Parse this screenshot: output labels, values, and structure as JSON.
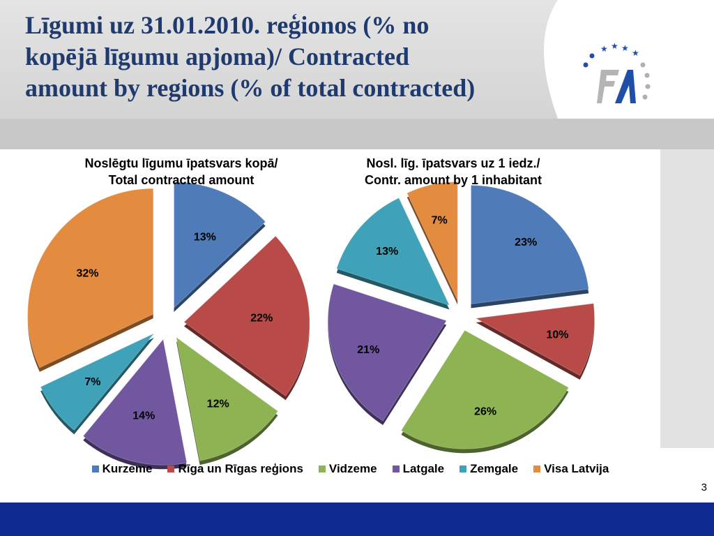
{
  "slide": {
    "title": "Līgumi uz 31.01.2010. reģionos (% no\nkopējā līgumu apjoma)/ Contracted\namount by regions (% of total contracted)",
    "page_number": "3"
  },
  "colors": {
    "title": "#1f3a6e",
    "footer": "#0d2a8f",
    "logo_blue": "#1f4fa8"
  },
  "logo": {
    "icon": "fm-logo-with-stars"
  },
  "chart_data": [
    {
      "type": "pie",
      "title": "Noslēgtu līgumu īpatsvars kopā/\nTotal contracted amount",
      "categories": [
        "Kurzeme",
        "Rīga un Rīgas reģions",
        "Vidzeme",
        "Latgale",
        "Zemgale",
        "Visa Latvija"
      ],
      "values": [
        13,
        22,
        12,
        14,
        7,
        32
      ],
      "labels": [
        "13%",
        "22%",
        "12%",
        "14%",
        "7%",
        "32%"
      ],
      "colors": [
        "#4f7bb8",
        "#b84a47",
        "#8db352",
        "#7157a0",
        "#3fa2b8",
        "#e38b3f"
      ],
      "exploded": true
    },
    {
      "type": "pie",
      "title": "Nosl. līg. īpatsvars uz 1 iedz./\nContr. amount by 1 inhabitant",
      "categories": [
        "Kurzeme",
        "Rīga un Rīgas reģions",
        "Vidzeme",
        "Latgale",
        "Zemgale",
        "Visa Latvija"
      ],
      "values": [
        23,
        10,
        26,
        21,
        13,
        7
      ],
      "labels": [
        "23%",
        "10%",
        "26%",
        "21%",
        "13%",
        "7%"
      ],
      "colors": [
        "#4f7bb8",
        "#b84a47",
        "#8db352",
        "#7157a0",
        "#3fa2b8",
        "#e38b3f"
      ],
      "exploded": true
    }
  ],
  "legend": {
    "placement": "bottom",
    "items": [
      {
        "label": "Kurzeme",
        "color": "#4f7bb8"
      },
      {
        "label": "Rīga un Rīgas reģions",
        "color": "#b84a47"
      },
      {
        "label": "Vidzeme",
        "color": "#8db352"
      },
      {
        "label": "Latgale",
        "color": "#7157a0"
      },
      {
        "label": "Zemgale",
        "color": "#3fa2b8"
      },
      {
        "label": "Visa Latvija",
        "color": "#e38b3f"
      }
    ]
  }
}
